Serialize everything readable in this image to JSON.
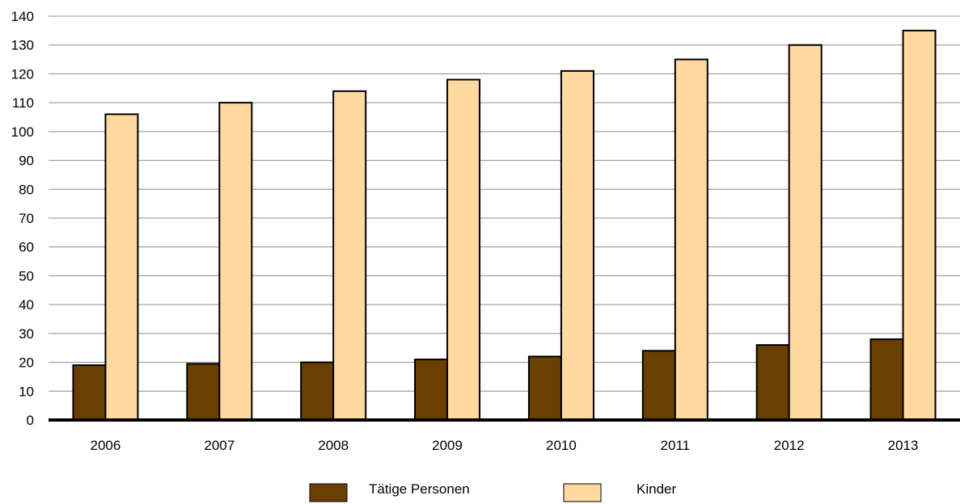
{
  "chart_data": {
    "type": "bar",
    "title": "",
    "xlabel": "",
    "ylabel": "",
    "categories": [
      "2006",
      "2007",
      "2008",
      "2009",
      "2010",
      "2011",
      "2012",
      "2013"
    ],
    "series": [
      {
        "name": "Tätige Personen",
        "color": "#6b3f00",
        "values": [
          19,
          19.5,
          20,
          21,
          22,
          24,
          26,
          28
        ]
      },
      {
        "name": "Kinder",
        "color": "#ffd9a0",
        "values": [
          106,
          110,
          114,
          118,
          121,
          125,
          130,
          135
        ]
      }
    ],
    "ylim": [
      0,
      140
    ],
    "yticks": [
      0,
      10,
      20,
      30,
      40,
      50,
      60,
      70,
      80,
      90,
      100,
      110,
      120,
      130,
      140
    ],
    "grid": true,
    "legend_position": "bottom-center"
  }
}
